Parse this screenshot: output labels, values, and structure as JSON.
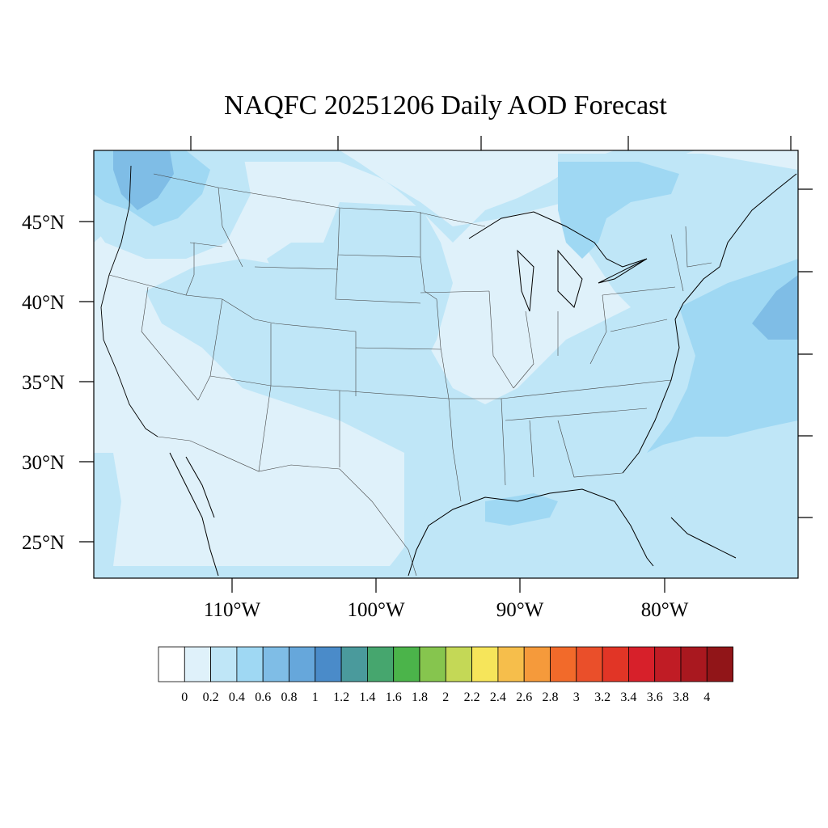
{
  "title": "NAQFC 20251206 Daily AOD Forecast",
  "chart_data": {
    "type": "map",
    "projection": "lambert-conformal",
    "region": "CONUS",
    "variable": "AOD",
    "lat_labels": [
      "45°N",
      "40°N",
      "35°N",
      "30°N",
      "25°N"
    ],
    "lon_labels": [
      "110°W",
      "100°W",
      "90°W",
      "80°W"
    ],
    "colorbar": {
      "colors": [
        "#ffffff",
        "#dff1fa",
        "#bfe6f7",
        "#9fd8f3",
        "#7fbde6",
        "#66a7db",
        "#4a8bc9",
        "#4a9a9c",
        "#46a66e",
        "#4bb44a",
        "#86c54e",
        "#c4d856",
        "#f6e55a",
        "#f6be4b",
        "#f59a3b",
        "#f26a2a",
        "#ea4f2a",
        "#e13526",
        "#d7202a",
        "#c01c25",
        "#a9181f",
        "#911518"
      ],
      "labels": [
        "0",
        "0.2",
        "0.4",
        "0.6",
        "0.8",
        "1",
        "1.2",
        "1.4",
        "1.6",
        "1.8",
        "2",
        "2.2",
        "2.4",
        "2.6",
        "2.8",
        "3",
        "3.2",
        "3.4",
        "3.6",
        "3.8",
        "4"
      ]
    }
  }
}
